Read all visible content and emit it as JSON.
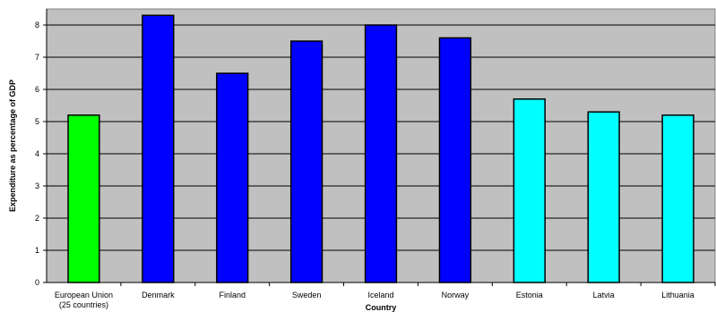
{
  "chart_data": {
    "type": "bar",
    "title": "",
    "xlabel": "Country",
    "ylabel": "Expenditure as percentage of GDP",
    "ylim": [
      0,
      8.5
    ],
    "yticks": [
      0,
      1,
      2,
      3,
      4,
      5,
      6,
      7,
      8
    ],
    "grid": true,
    "categories": [
      [
        "European Union",
        "(25 countries)"
      ],
      [
        "Denmark"
      ],
      [
        "Finland"
      ],
      [
        "Sweden"
      ],
      [
        "Iceland"
      ],
      [
        "Norway"
      ],
      [
        "Estonia"
      ],
      [
        "Latvia"
      ],
      [
        "Lithuania"
      ]
    ],
    "values": [
      5.2,
      8.3,
      6.5,
      7.5,
      8.0,
      7.6,
      5.7,
      5.3,
      5.2
    ],
    "bar_colors": [
      "#00ff00",
      "#0000ff",
      "#0000ff",
      "#0000ff",
      "#0000ff",
      "#0000ff",
      "#00ffff",
      "#00ffff",
      "#00ffff"
    ],
    "colors": {
      "plot_background": "#c0c0c0",
      "gridline": "#000000",
      "bar_edge": "#000000"
    }
  }
}
